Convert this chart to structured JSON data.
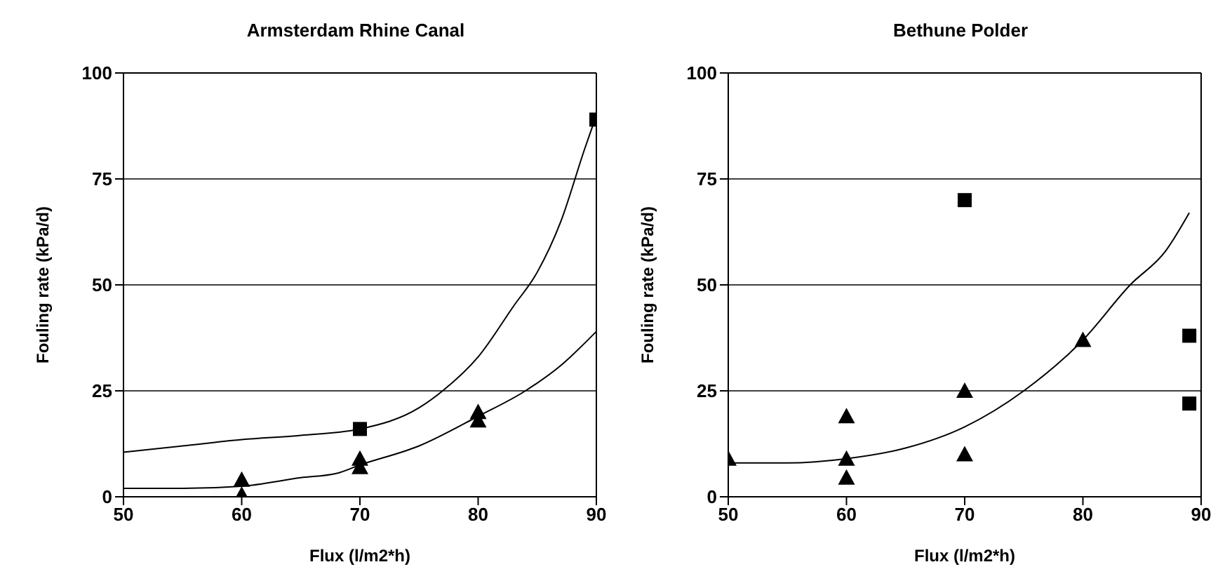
{
  "chart_data": [
    {
      "type": "scatter",
      "title": "Armsterdam Rhine Canal",
      "xlabel": "Flux (l/m2*h)",
      "ylabel": "Fouling rate (kPa/d)",
      "xlim": [
        50,
        90
      ],
      "xticks": [
        50,
        60,
        70,
        80,
        90
      ],
      "ylim": [
        0,
        100
      ],
      "yticks": [
        0,
        25,
        50,
        75,
        100
      ],
      "grid": "y",
      "legend": false,
      "series": [
        {
          "marker": "square",
          "color": "#000000",
          "x": [
            70,
            90
          ],
          "values": [
            16,
            89
          ]
        },
        {
          "marker": "triangle",
          "color": "#000000",
          "x": [
            60,
            60,
            70,
            70,
            80,
            80
          ],
          "values": [
            4,
            0.5,
            9,
            7,
            20,
            18
          ]
        },
        {
          "type": "line",
          "marker": "none",
          "color": "#000000",
          "x": [
            50,
            55,
            60,
            65,
            70,
            75,
            77,
            80,
            83,
            85,
            87,
            89,
            90
          ],
          "values": [
            10.5,
            12,
            13.5,
            14.5,
            16,
            21,
            25,
            33,
            45,
            53,
            65,
            82,
            90
          ]
        },
        {
          "type": "line",
          "marker": "none",
          "color": "#000000",
          "x": [
            50,
            55,
            60,
            65,
            68,
            70,
            75,
            80,
            84,
            87,
            90
          ],
          "values": [
            2,
            2,
            2.5,
            4.5,
            5.5,
            7.5,
            12,
            19,
            25,
            31,
            39
          ]
        }
      ]
    },
    {
      "type": "scatter",
      "title": "Bethune Polder",
      "xlabel": "Flux (l/m2*h)",
      "ylabel": "Fouling rate (kPa/d)",
      "xlim": [
        50,
        90
      ],
      "xticks": [
        50,
        60,
        70,
        80,
        90
      ],
      "ylim": [
        0,
        100
      ],
      "yticks": [
        0,
        25,
        50,
        75,
        100
      ],
      "grid": "y",
      "legend": false,
      "series": [
        {
          "marker": "square",
          "color": "#000000",
          "x": [
            70,
            89,
            89
          ],
          "values": [
            70,
            38,
            22
          ]
        },
        {
          "marker": "triangle",
          "color": "#000000",
          "x": [
            50,
            60,
            60,
            60,
            70,
            70,
            80
          ],
          "values": [
            9,
            19,
            9,
            4.5,
            25,
            10,
            37
          ]
        },
        {
          "type": "line",
          "marker": "none",
          "color": "#000000",
          "x": [
            50,
            55,
            60,
            65,
            70,
            75,
            80,
            84,
            87,
            89
          ],
          "values": [
            8,
            8,
            9,
            11.5,
            16.5,
            25,
            37,
            50,
            58,
            67
          ]
        }
      ]
    }
  ]
}
